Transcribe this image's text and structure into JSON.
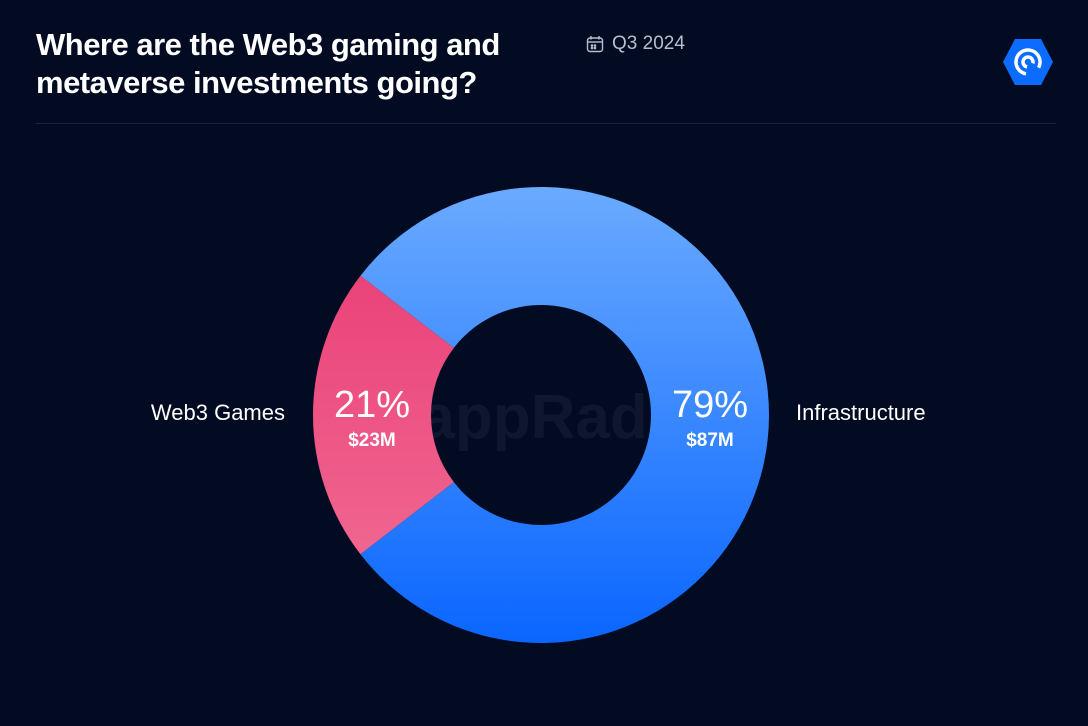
{
  "header": {
    "title": "Where are the Web3 gaming and metaverse investments going?",
    "period": "Q3 2024",
    "period_icon": "calendar-icon",
    "logo_icon": "dappradar-logo-icon"
  },
  "watermark": "DappRadar",
  "colors": {
    "background": "#020b22",
    "infrastructure": "#1f7bff",
    "web3_games": "#ee4a7e"
  },
  "chart_data": {
    "type": "pie",
    "donut": true,
    "categories": [
      "Web3 Games",
      "Infrastructure"
    ],
    "values": [
      23,
      87
    ],
    "unit": "$M",
    "percent_labels": [
      "21%",
      "79%"
    ],
    "value_labels": [
      "$23M",
      "$87M"
    ],
    "colors": [
      "#ee4a7e",
      "#2d86ff"
    ]
  }
}
